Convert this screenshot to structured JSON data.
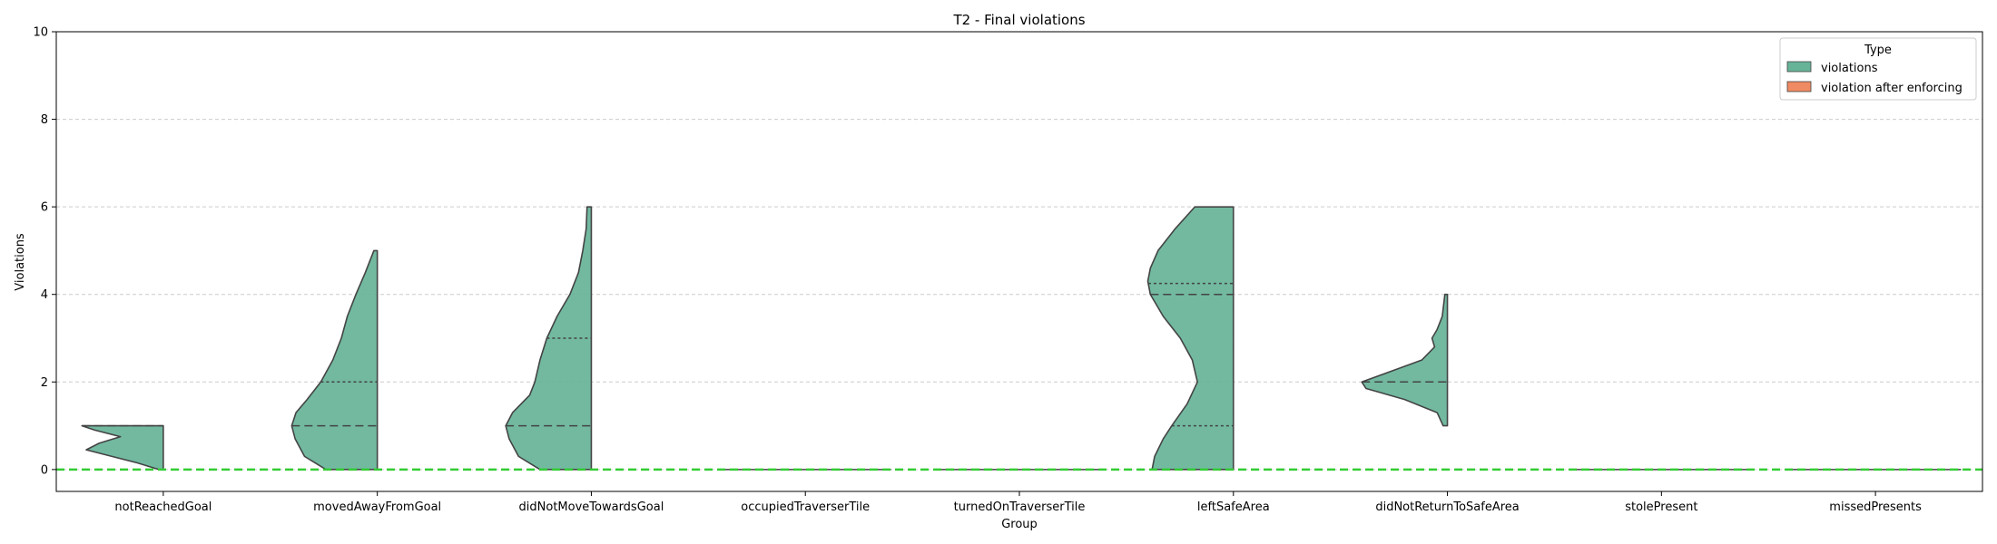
{
  "chart_data": {
    "type": "violin",
    "title": "T2 - Final violations",
    "xlabel": "Group",
    "ylabel": "Violations",
    "ylim": [
      -0.5,
      10
    ],
    "yticks": [
      0,
      2,
      4,
      6,
      8,
      10
    ],
    "grid": "y-dashed",
    "legend": {
      "title": "Type",
      "placement": "top-right",
      "entries": [
        {
          "name": "violations",
          "color": "#66b398"
        },
        {
          "name": "violation after enforcing",
          "color": "#ef8a62"
        }
      ]
    },
    "reference_line": {
      "y": 0,
      "color": "#33cc33",
      "style": "dashed"
    },
    "categories": [
      "notReachedGoal",
      "movedAwayFromGoal",
      "didNotMoveTowardsGoal",
      "occupiedTraverserTile",
      "turnedOnTraverserTile",
      "leftSafeArea",
      "didNotReturnToSafeArea",
      "stolePresent",
      "missedPresents"
    ],
    "series": [
      {
        "name": "violations",
        "color": "#66b398",
        "groups": [
          {
            "category": "notReachedGoal",
            "profile": [
              [
                0,
                0.05
              ],
              [
                0.15,
                0.3
              ],
              [
                0.3,
                0.6
              ],
              [
                0.45,
                0.9
              ],
              [
                0.6,
                0.75
              ],
              [
                0.75,
                0.5
              ],
              [
                0.9,
                0.8
              ],
              [
                1,
                0.95
              ]
            ],
            "median": 1,
            "quartiles": [
              1,
              1
            ]
          },
          {
            "category": "movedAwayFromGoal",
            "profile": [
              [
                0,
                0.6
              ],
              [
                0.3,
                0.85
              ],
              [
                0.7,
                0.96
              ],
              [
                1,
                1.0
              ],
              [
                1.3,
                0.95
              ],
              [
                1.6,
                0.82
              ],
              [
                2,
                0.66
              ],
              [
                2.5,
                0.52
              ],
              [
                3,
                0.42
              ],
              [
                3.5,
                0.35
              ],
              [
                4,
                0.25
              ],
              [
                4.5,
                0.14
              ],
              [
                5,
                0.04
              ]
            ],
            "median": 1,
            "quartiles": [
              1,
              2
            ]
          },
          {
            "category": "didNotMoveTowardsGoal",
            "profile": [
              [
                0,
                0.6
              ],
              [
                0.3,
                0.85
              ],
              [
                0.7,
                0.96
              ],
              [
                1,
                1.0
              ],
              [
                1.3,
                0.92
              ],
              [
                1.7,
                0.72
              ],
              [
                2,
                0.66
              ],
              [
                2.5,
                0.6
              ],
              [
                3,
                0.52
              ],
              [
                3.5,
                0.4
              ],
              [
                4,
                0.25
              ],
              [
                4.5,
                0.15
              ],
              [
                5,
                0.1
              ],
              [
                5.5,
                0.06
              ],
              [
                6,
                0.05
              ]
            ],
            "median": 1,
            "quartiles": [
              1,
              3
            ]
          },
          {
            "category": "occupiedTraverserTile",
            "profile": [],
            "median": 0,
            "quartiles": [
              0,
              0
            ]
          },
          {
            "category": "turnedOnTraverserTile",
            "profile": [],
            "median": 0,
            "quartiles": [
              0,
              0
            ]
          },
          {
            "category": "leftSafeArea",
            "profile": [
              [
                0,
                0.95
              ],
              [
                0.3,
                0.92
              ],
              [
                0.7,
                0.82
              ],
              [
                1,
                0.72
              ],
              [
                1.5,
                0.54
              ],
              [
                2,
                0.42
              ],
              [
                2.5,
                0.48
              ],
              [
                3,
                0.62
              ],
              [
                3.5,
                0.82
              ],
              [
                4,
                0.97
              ],
              [
                4.3,
                1.0
              ],
              [
                4.6,
                0.97
              ],
              [
                5,
                0.88
              ],
              [
                5.5,
                0.68
              ],
              [
                6,
                0.45
              ]
            ],
            "median": 4,
            "quartiles": [
              1,
              4.25
            ]
          },
          {
            "category": "didNotReturnToSafeArea",
            "profile": [
              [
                1,
                0.05
              ],
              [
                1.3,
                0.12
              ],
              [
                1.6,
                0.5
              ],
              [
                1.85,
                0.95
              ],
              [
                2,
                1.0
              ],
              [
                2.2,
                0.72
              ],
              [
                2.5,
                0.3
              ],
              [
                2.8,
                0.15
              ],
              [
                3,
                0.18
              ],
              [
                3.2,
                0.12
              ],
              [
                3.5,
                0.06
              ],
              [
                4,
                0.03
              ]
            ],
            "median": 2,
            "quartiles": [
              2,
              2
            ]
          },
          {
            "category": "stolePresent",
            "profile": [],
            "median": 0,
            "quartiles": [
              0,
              0
            ]
          },
          {
            "category": "missedPresents",
            "profile": [],
            "median": 0,
            "quartiles": [
              0,
              0
            ]
          }
        ]
      },
      {
        "name": "violation after enforcing",
        "color": "#ef8a62",
        "groups": []
      }
    ]
  }
}
